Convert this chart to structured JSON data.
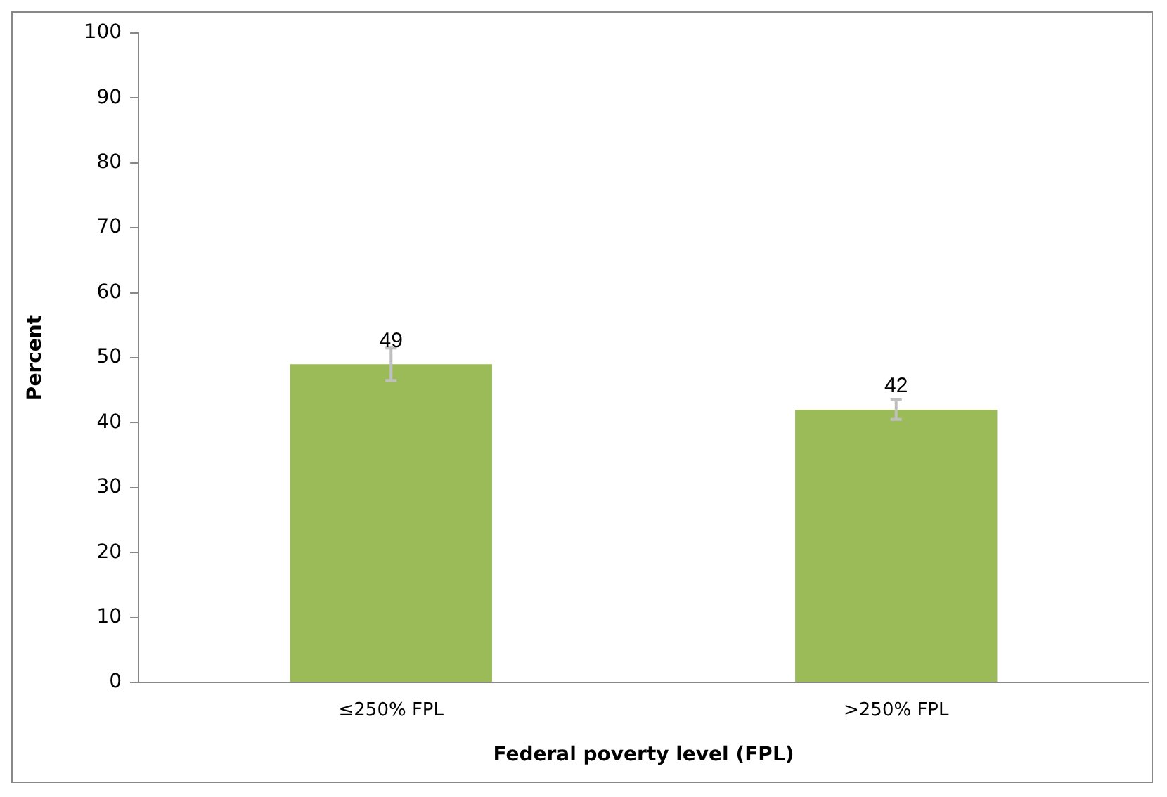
{
  "chart_data": {
    "type": "bar",
    "xlabel": "Federal poverty level (FPL)",
    "ylabel": "Percent",
    "categories": [
      "≤250% FPL",
      ">250% FPL"
    ],
    "series": [
      {
        "color": "#9bbb59",
        "values": [
          49,
          42
        ],
        "errors": [
          2.5,
          1.5
        ]
      }
    ],
    "ylim": [
      0,
      100
    ],
    "yticks": [
      0,
      10,
      20,
      30,
      40,
      50,
      60,
      70,
      80,
      90,
      100
    ],
    "data_labels": true,
    "grid": false,
    "legend": false
  }
}
